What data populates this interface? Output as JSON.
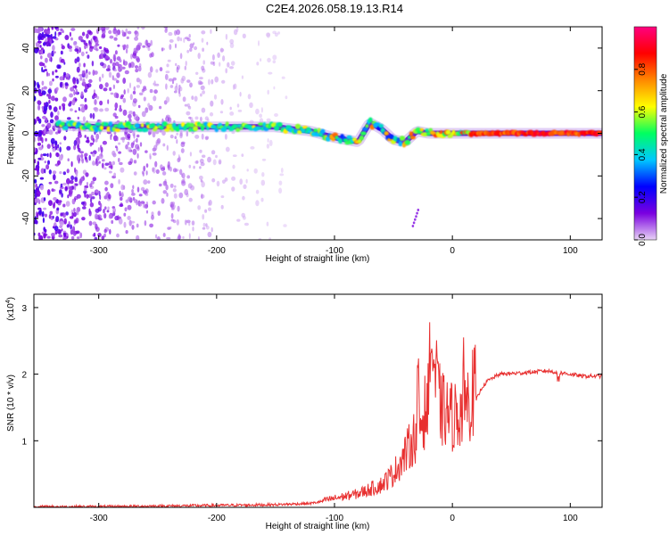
{
  "chart_data": [
    {
      "type": "heatmap",
      "title": "C2E4.2026.058.19.13.R14",
      "xlabel": "Height of straight line (km)",
      "ylabel": "Frequency (Hz)",
      "xlim": [
        -355,
        127
      ],
      "ylim": [
        -50,
        50
      ],
      "xticks": [
        -300,
        -200,
        -100,
        0,
        100
      ],
      "xtick_labels": [
        "-300",
        "-200",
        "-100",
        "0",
        "100"
      ],
      "yticks": [
        -40,
        -20,
        0,
        20,
        40
      ],
      "ytick_labels": [
        "-40",
        "-20",
        "0",
        "20",
        "40"
      ],
      "colorbar": {
        "label": "Normalized spectral amplitude",
        "range": [
          0,
          1
        ],
        "ticks": [
          0.0,
          0.2,
          0.4,
          0.6,
          0.8
        ],
        "tick_labels": [
          "0.0",
          "0.2",
          "0.4",
          "0.6",
          "0.8"
        ],
        "colors": [
          "#e8d4f5",
          "#7a00e0",
          "#0000ff",
          "#00c8ff",
          "#00ff60",
          "#ffff00",
          "#ff8800",
          "#ff0000",
          "#ff0080"
        ]
      },
      "ridge": {
        "x": [
          -340,
          -300,
          -250,
          -200,
          -150,
          -120,
          -100,
          -90,
          -80,
          -70,
          -60,
          -50,
          -40,
          -30,
          -20,
          -10,
          0,
          20,
          50,
          100,
          127
        ],
        "freq": [
          4,
          3,
          3,
          3,
          3,
          1,
          -2,
          -3,
          -4,
          5,
          2,
          -3,
          -4,
          1,
          0,
          0,
          0,
          0,
          0,
          0,
          0
        ]
      }
    },
    {
      "type": "line",
      "xlabel": "Height of straight line (km)",
      "ylabel": "SNR (10 * v/v)",
      "y_multiplier": "(x10",
      "y_multiplier_exp": "4",
      "y_multiplier_close": ")",
      "xlim": [
        -355,
        127
      ],
      "ylim": [
        0,
        3.2
      ],
      "xticks": [
        -300,
        -200,
        -100,
        0,
        100
      ],
      "xtick_labels": [
        "-300",
        "-200",
        "-100",
        "0",
        "100"
      ],
      "yticks": [
        1,
        2,
        3
      ],
      "ytick_labels": [
        "1",
        "2",
        "3"
      ],
      "series": [
        {
          "name": "SNR",
          "color": "#e83030",
          "x": [
            -355,
            -300,
            -250,
            -200,
            -150,
            -120,
            -100,
            -80,
            -60,
            -50,
            -40,
            -30,
            -25,
            -20,
            -18,
            -10,
            0,
            10,
            20,
            25,
            30,
            40,
            60,
            80,
            100,
            110,
            127
          ],
          "y": [
            0.01,
            0.01,
            0.02,
            0.03,
            0.04,
            0.06,
            0.12,
            0.18,
            0.3,
            0.45,
            0.7,
            1.0,
            1.2,
            1.4,
            2.1,
            1.3,
            1.2,
            1.3,
            1.6,
            1.8,
            1.9,
            2.0,
            2.02,
            2.05,
            2.0,
            1.97,
            1.97
          ]
        }
      ]
    }
  ]
}
